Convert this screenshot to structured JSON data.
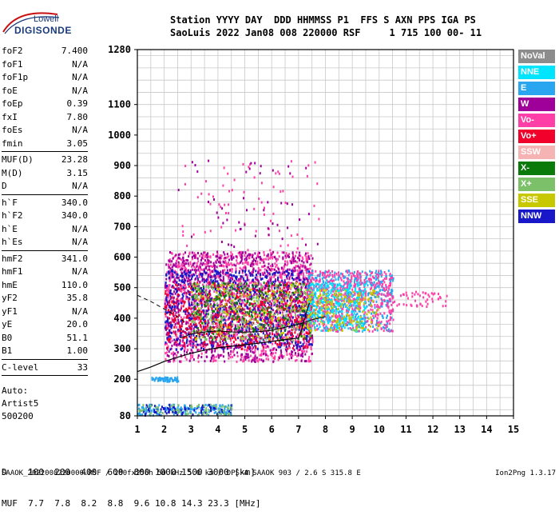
{
  "logo": {
    "name": "Lowell",
    "sub": "DIGISONDE"
  },
  "header": {
    "line1": "Station YYYY DAY  DDD HHMMSS P1  FFS S AXN PPS IGA PS",
    "line2": "SaoLuis 2022 Jan08 008 220000 RSF     1 715 100 00- 11"
  },
  "params": [
    {
      "label": "foF2",
      "value": "7.400"
    },
    {
      "label": "foF1",
      "value": "N/A"
    },
    {
      "label": "foF1p",
      "value": "N/A"
    },
    {
      "label": "foE",
      "value": "N/A"
    },
    {
      "label": "foEp",
      "value": "0.39"
    },
    {
      "label": "fxI",
      "value": "7.80"
    },
    {
      "label": "foEs",
      "value": "N/A"
    },
    {
      "label": "fmin",
      "value": "3.05"
    },
    {
      "sep": true
    },
    {
      "label": "MUF(D)",
      "value": "23.28"
    },
    {
      "label": "M(D)",
      "value": "3.15"
    },
    {
      "label": "D",
      "value": "N/A"
    },
    {
      "sep": true
    },
    {
      "label": "h`F",
      "value": "340.0"
    },
    {
      "label": "h`F2",
      "value": "340.0"
    },
    {
      "label": "h`E",
      "value": "N/A"
    },
    {
      "label": "h`Es",
      "value": "N/A"
    },
    {
      "sep": true
    },
    {
      "label": "hmF2",
      "value": "341.0"
    },
    {
      "label": "hmF1",
      "value": "N/A"
    },
    {
      "label": "hmE",
      "value": "110.0"
    },
    {
      "label": "yF2",
      "value": "35.8"
    },
    {
      "label": "yF1",
      "value": "N/A"
    },
    {
      "label": "yE",
      "value": "20.0"
    },
    {
      "label": "B0",
      "value": "51.1"
    },
    {
      "label": "B1",
      "value": "1.00"
    },
    {
      "sep": true
    },
    {
      "label": "C-level",
      "value": "33"
    },
    {
      "sep": true
    }
  ],
  "auto": {
    "line1": "Auto:",
    "line2": "Artist5",
    "line3": "500200"
  },
  "legend": [
    {
      "label": "NoVal",
      "color": "#8c8c8c"
    },
    {
      "label": "NNE",
      "color": "#00e5ff"
    },
    {
      "label": "E",
      "color": "#2aa6f0"
    },
    {
      "label": "W",
      "color": "#a0009a"
    },
    {
      "label": "Vo-",
      "color": "#ff3fa8"
    },
    {
      "label": "Vo+",
      "color": "#f0002a"
    },
    {
      "label": "SSW",
      "color": "#f6b3b3"
    },
    {
      "label": "X-",
      "color": "#0a7a0a"
    },
    {
      "label": "X+",
      "color": "#7cc06a"
    },
    {
      "label": "SSE",
      "color": "#c8c800"
    },
    {
      "label": "NNW",
      "color": "#1818c8"
    }
  ],
  "dmuf": {
    "line1": "D    100  200  400  600  800 1000 1500 3000 [km]",
    "line2": "MUF  7.7  7.8  8.2  8.8  9.6 10.8 14.3 23.3 [MHz]"
  },
  "footer": "SAAOK_2022008220000.RSF / 280fx256h 50 kHz 5.0 km / DPS-4 SAAOK 903 / 2.6 S 315.8 E",
  "version": "Ion2Png 1.3.17",
  "chart_data": {
    "type": "scatter",
    "xlim": [
      1,
      15
    ],
    "ylim": [
      80,
      1280
    ],
    "xticks": [
      1,
      2,
      3,
      4,
      5,
      6,
      7,
      8,
      9,
      10,
      11,
      12,
      13,
      14,
      15
    ],
    "yticks": [
      80,
      200,
      300,
      400,
      500,
      600,
      700,
      800,
      900,
      1000,
      1100,
      1280
    ],
    "grid": true,
    "xlabel": "",
    "ylabel": "",
    "profile_line": {
      "x": [
        1.0,
        1.5,
        2.0,
        2.5,
        3.0,
        3.5,
        4.0,
        4.5,
        5.0,
        5.5,
        6.0,
        6.5,
        7.0,
        7.1,
        7.2,
        7.3,
        7.4
      ],
      "y": [
        225,
        240,
        258,
        272,
        285,
        295,
        303,
        308,
        313,
        318,
        324,
        330,
        335,
        360,
        390,
        420,
        450
      ]
    },
    "profile_line2": {
      "x": [
        2.6,
        3.0,
        3.5,
        4.0,
        4.5,
        5.0,
        5.5,
        6.0,
        6.5,
        7.0,
        7.5,
        8.0
      ],
      "y": [
        335,
        348,
        355,
        358,
        355,
        354,
        356,
        360,
        370,
        380,
        395,
        405
      ]
    },
    "dashed_line": {
      "x": [
        1.0,
        1.5,
        2.0,
        2.5,
        2.8
      ],
      "y": [
        475,
        455,
        430,
        405,
        385
      ]
    },
    "clusters": [
      {
        "x": [
          2.0,
          7.5
        ],
        "y": [
          260,
          620
        ],
        "color": "#ff3fa8",
        "n": 1400
      },
      {
        "x": [
          2.0,
          7.5
        ],
        "y": [
          260,
          620
        ],
        "color": "#a0009a",
        "n": 1100
      },
      {
        "x": [
          2.0,
          7.5
        ],
        "y": [
          300,
          560
        ],
        "color": "#1818c8",
        "n": 700
      },
      {
        "x": [
          2.0,
          7.5
        ],
        "y": [
          300,
          520
        ],
        "color": "#f0002a",
        "n": 500
      },
      {
        "x": [
          3.0,
          7.5
        ],
        "y": [
          330,
          520
        ],
        "color": "#c8c800",
        "n": 220
      },
      {
        "x": [
          3.0,
          7.5
        ],
        "y": [
          330,
          520
        ],
        "color": "#0a7a0a",
        "n": 220
      },
      {
        "x": [
          3.0,
          7.5
        ],
        "y": [
          330,
          520
        ],
        "color": "#7cc06a",
        "n": 200
      },
      {
        "x": [
          7.3,
          10.5
        ],
        "y": [
          360,
          560
        ],
        "color": "#2aa6f0",
        "n": 500
      },
      {
        "x": [
          7.3,
          10.5
        ],
        "y": [
          360,
          560
        ],
        "color": "#ff3fa8",
        "n": 500
      },
      {
        "x": [
          7.3,
          9.5
        ],
        "y": [
          360,
          520
        ],
        "color": "#00e5ff",
        "n": 250
      },
      {
        "x": [
          7.3,
          10.0
        ],
        "y": [
          360,
          500
        ],
        "color": "#c8c800",
        "n": 180
      },
      {
        "x": [
          10.0,
          12.5
        ],
        "y": [
          440,
          490
        ],
        "color": "#ff3fa8",
        "n": 60
      },
      {
        "x": [
          2.5,
          7.8
        ],
        "y": [
          620,
          920
        ],
        "color": "#ff3fa8",
        "n": 70
      },
      {
        "x": [
          2.5,
          7.8
        ],
        "y": [
          620,
          920
        ],
        "color": "#a0009a",
        "n": 50
      },
      {
        "x": [
          1.5,
          2.5
        ],
        "y": [
          195,
          210
        ],
        "color": "#2aa6f0",
        "n": 60
      },
      {
        "x": [
          1.0,
          4.5
        ],
        "y": [
          85,
          120
        ],
        "color": "#2aa6f0",
        "n": 160
      },
      {
        "x": [
          1.0,
          4.5
        ],
        "y": [
          85,
          120
        ],
        "color": "#1818c8",
        "n": 80
      },
      {
        "x": [
          1.0,
          4.5
        ],
        "y": [
          85,
          120
        ],
        "color": "#7cc06a",
        "n": 60
      }
    ]
  }
}
